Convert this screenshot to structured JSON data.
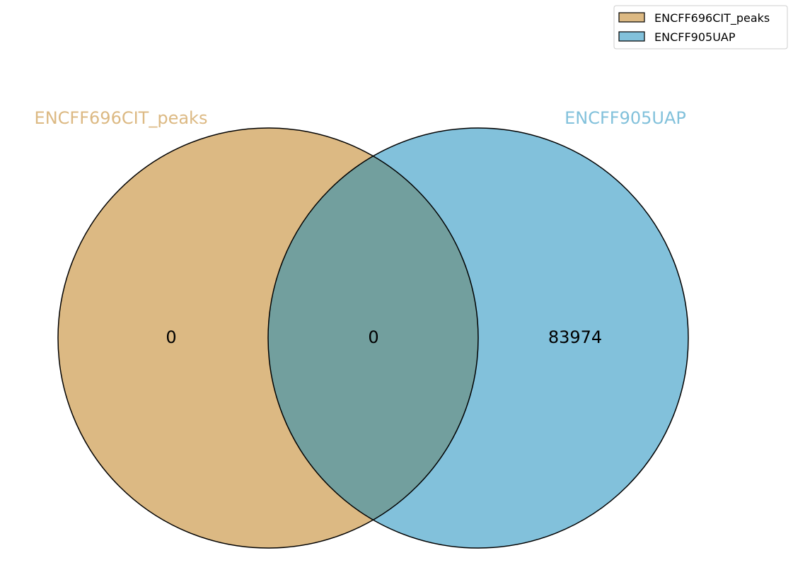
{
  "venn": {
    "sets": [
      {
        "name": "ENCFF696CIT_peaks",
        "color": "#dcb983"
      },
      {
        "name": "ENCFF905UAP",
        "color": "#82c1db"
      }
    ],
    "intersection_color": "#729f9e",
    "regions": {
      "only_a": "0",
      "both": "0",
      "only_b": "83974"
    },
    "legend": {
      "items": [
        {
          "label": "ENCFF696CIT_peaks",
          "color": "#dcb983"
        },
        {
          "label": "ENCFF905UAP",
          "color": "#82c1db"
        }
      ],
      "placement": "top-right"
    }
  }
}
